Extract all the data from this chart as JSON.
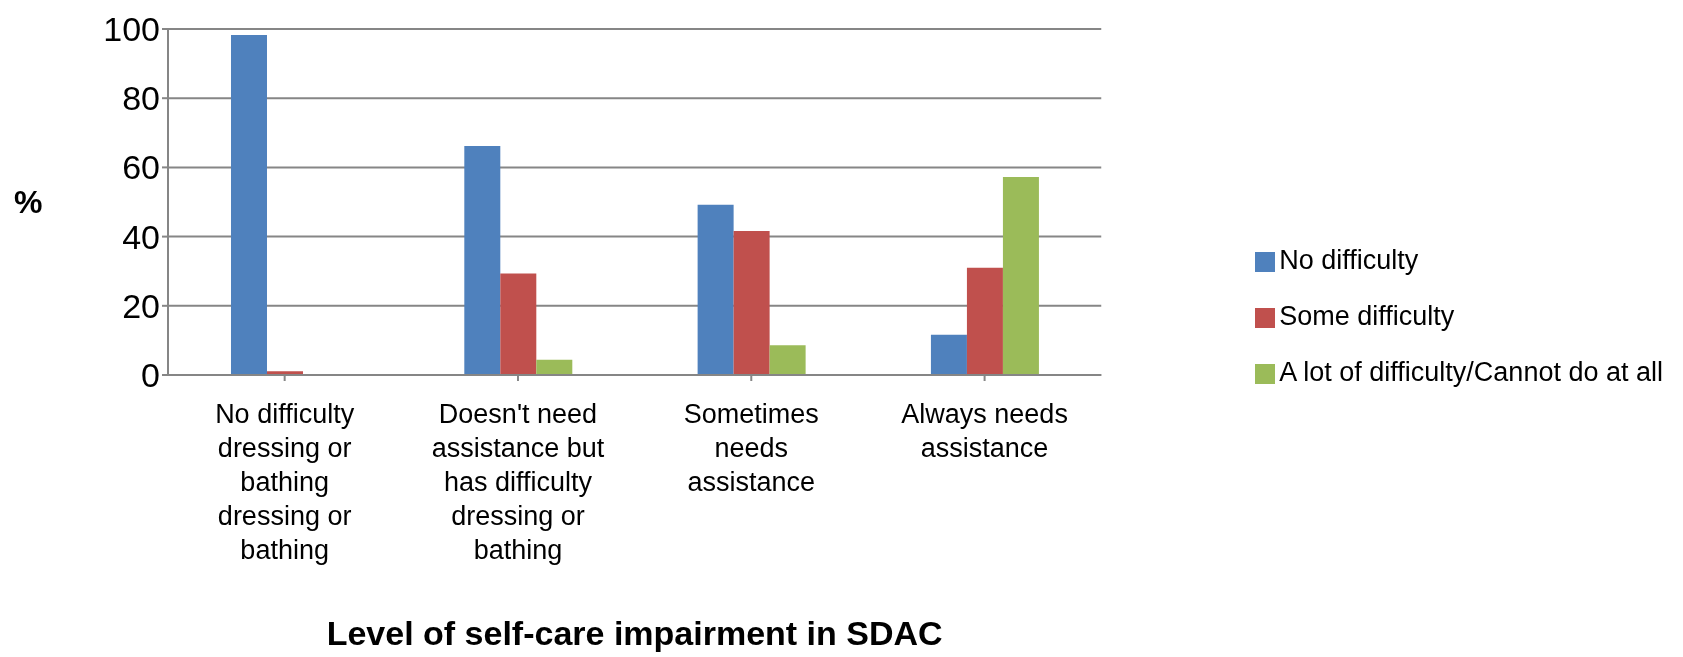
{
  "chart_data": {
    "type": "bar",
    "categories": [
      "No difficulty dressing or bathing dressing or bathing",
      "Doesn't need assistance but has difficulty dressing or bathing",
      "Sometimes needs assistance",
      "Always needs assistance"
    ],
    "series": [
      {
        "name": "No difficulty",
        "color": "#4f81bd",
        "values": [
          98.3,
          66.2,
          49.2,
          11.6
        ]
      },
      {
        "name": "Some difficulty",
        "color": "#c0504d",
        "values": [
          1.1,
          29.3,
          41.6,
          31.0
        ]
      },
      {
        "name": "A lot of difficulty/Cannot do at all",
        "color": "#9bbb59",
        "values": [
          0,
          4.4,
          8.6,
          57.2
        ]
      }
    ],
    "ylim": [
      0,
      100
    ],
    "yticks": [
      0,
      20,
      40,
      60,
      80,
      100
    ],
    "ylabel": "%",
    "xlabel": "Level of self-care impairment in SDAC",
    "grid": "y",
    "legend": "right"
  }
}
